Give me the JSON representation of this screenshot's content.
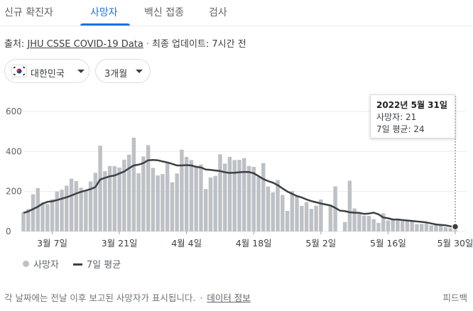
{
  "tabs": [
    "신규 확진자",
    "사망자",
    "백신 접종",
    "검사"
  ],
  "source": {
    "prefix": "출처: ",
    "link": "JHU CSSE COVID-19 Data",
    "separator": "·",
    "updated": "최종 업데이트: 7시간 전"
  },
  "filters": {
    "region": "대한민국",
    "range": "3개월"
  },
  "tooltip": {
    "date": "2022년 5월 31일",
    "deaths": "사망자: 21",
    "avg": "7일 평균: 24"
  },
  "legend": {
    "bars": "사망자",
    "line": "7일 평균"
  },
  "footer": {
    "note": "각 날짜에는 전날 이후 보고된 사망자가 표시됩니다.",
    "separator": "·",
    "link": "데이터 정보",
    "feedback": "피드백"
  },
  "colors": {
    "accent": "#1a73e8",
    "bar": "#bdc1c6",
    "line": "#3c4043"
  },
  "chart_data": {
    "type": "bar",
    "start_date": "2022-03-01",
    "end_date": "2022-05-31",
    "yticks": [
      0,
      200,
      400,
      600
    ],
    "xticks": [
      "3월 7일",
      "3월 21일",
      "4월 4일",
      "4월 18일",
      "5월 2일",
      "5월 16일",
      "5월 30일"
    ],
    "ylim": [
      0,
      600
    ],
    "grid": true,
    "series": [
      {
        "name": "사망자",
        "type": "bar",
        "values": [
          96,
          112,
          186,
          217,
          146,
          137,
          161,
          200,
          209,
          229,
          264,
          252,
          219,
          203,
          250,
          293,
          429,
          301,
          327,
          327,
          320,
          359,
          384,
          469,
          291,
          375,
          432,
          318,
          280,
          287,
          348,
          246,
          290,
          409,
          373,
          357,
          329,
          335,
          212,
          270,
          278,
          386,
          339,
          373,
          357,
          358,
          367,
          328,
          323,
          273,
          342,
          225,
          196,
          257,
          183,
          103,
          202,
          179,
          128,
          147,
          113,
          129,
          160,
          0,
          128,
          226,
          0,
          47,
          254,
          115,
          92,
          79,
          78,
          62,
          43,
          91,
          55,
          60,
          63,
          52,
          56,
          51,
          37,
          38,
          40,
          31,
          34,
          34,
          22,
          17,
          21
        ]
      },
      {
        "name": "7일 평균",
        "type": "line",
        "values": [
          93,
          100,
          112,
          124,
          139,
          148,
          151,
          157,
          164,
          171,
          180,
          190,
          198,
          205,
          212,
          222,
          260,
          268,
          276,
          280,
          290,
          300,
          316,
          330,
          334,
          342,
          356,
          358,
          356,
          350,
          345,
          338,
          330,
          330,
          332,
          330,
          323,
          320,
          310,
          308,
          305,
          302,
          296,
          293,
          294,
          296,
          298,
          297,
          291,
          277,
          262,
          252,
          244,
          232,
          215,
          200,
          188,
          177,
          170,
          160,
          152,
          146,
          140,
          135,
          130,
          118,
          104,
          102,
          96,
          94,
          93,
          88,
          90,
          94,
          86,
          70,
          66,
          60,
          60,
          57,
          55,
          53,
          50,
          48,
          45,
          40,
          35,
          33,
          31,
          26,
          24
        ]
      }
    ]
  }
}
